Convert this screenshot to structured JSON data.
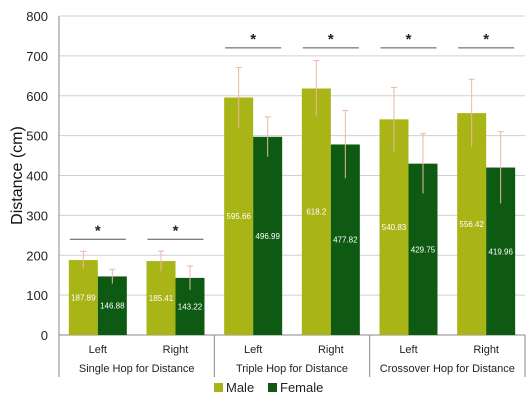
{
  "chart_data": {
    "type": "bar",
    "ylabel": "Distance (cm)",
    "ylim": [
      0,
      800
    ],
    "yticks": [
      0,
      100,
      200,
      300,
      400,
      500,
      600,
      700,
      800
    ],
    "grid": true,
    "legend_placement": "bottom",
    "colors": {
      "male": "#a9b517",
      "female": "#0f5a13",
      "sig": "#555555",
      "error": "#e8b8a0",
      "grid": "#d0d0d0"
    },
    "groups": [
      {
        "label": "Single Hop for Distance",
        "categories": [
          "Left",
          "Right"
        ]
      },
      {
        "label": "Triple Hop for Distance",
        "categories": [
          "Left",
          "Right"
        ]
      },
      {
        "label": "Crossover Hop for Distance",
        "categories": [
          "Left",
          "Right"
        ]
      }
    ],
    "categories": [
      "Left",
      "Right",
      "Left",
      "Right",
      "Left",
      "Right"
    ],
    "series": [
      {
        "name": "Male",
        "values": [
          187.89,
          185.41,
          595.66,
          618.2,
          540.83,
          556.42
        ],
        "error": [
          22,
          25,
          75,
          70,
          80,
          85
        ],
        "labels": [
          "187.89",
          "185.41",
          "595.66",
          "618.2",
          "540.83",
          "556.42"
        ]
      },
      {
        "name": "Female",
        "values": [
          146.88,
          143.22,
          496.99,
          477.82,
          429.75,
          419.96
        ],
        "error": [
          18,
          30,
          50,
          85,
          75,
          90
        ],
        "labels": [
          "146.88",
          "143.22",
          "496.99",
          "477.82",
          "429.75",
          "419.96"
        ]
      }
    ],
    "significance": [
      {
        "category_index": 0,
        "y": 240,
        "label": "*"
      },
      {
        "category_index": 1,
        "y": 240,
        "label": "*"
      },
      {
        "category_index": 2,
        "y": 720,
        "label": "*"
      },
      {
        "category_index": 3,
        "y": 720,
        "label": "*"
      },
      {
        "category_index": 4,
        "y": 720,
        "label": "*"
      },
      {
        "category_index": 5,
        "y": 720,
        "label": "*"
      }
    ]
  }
}
